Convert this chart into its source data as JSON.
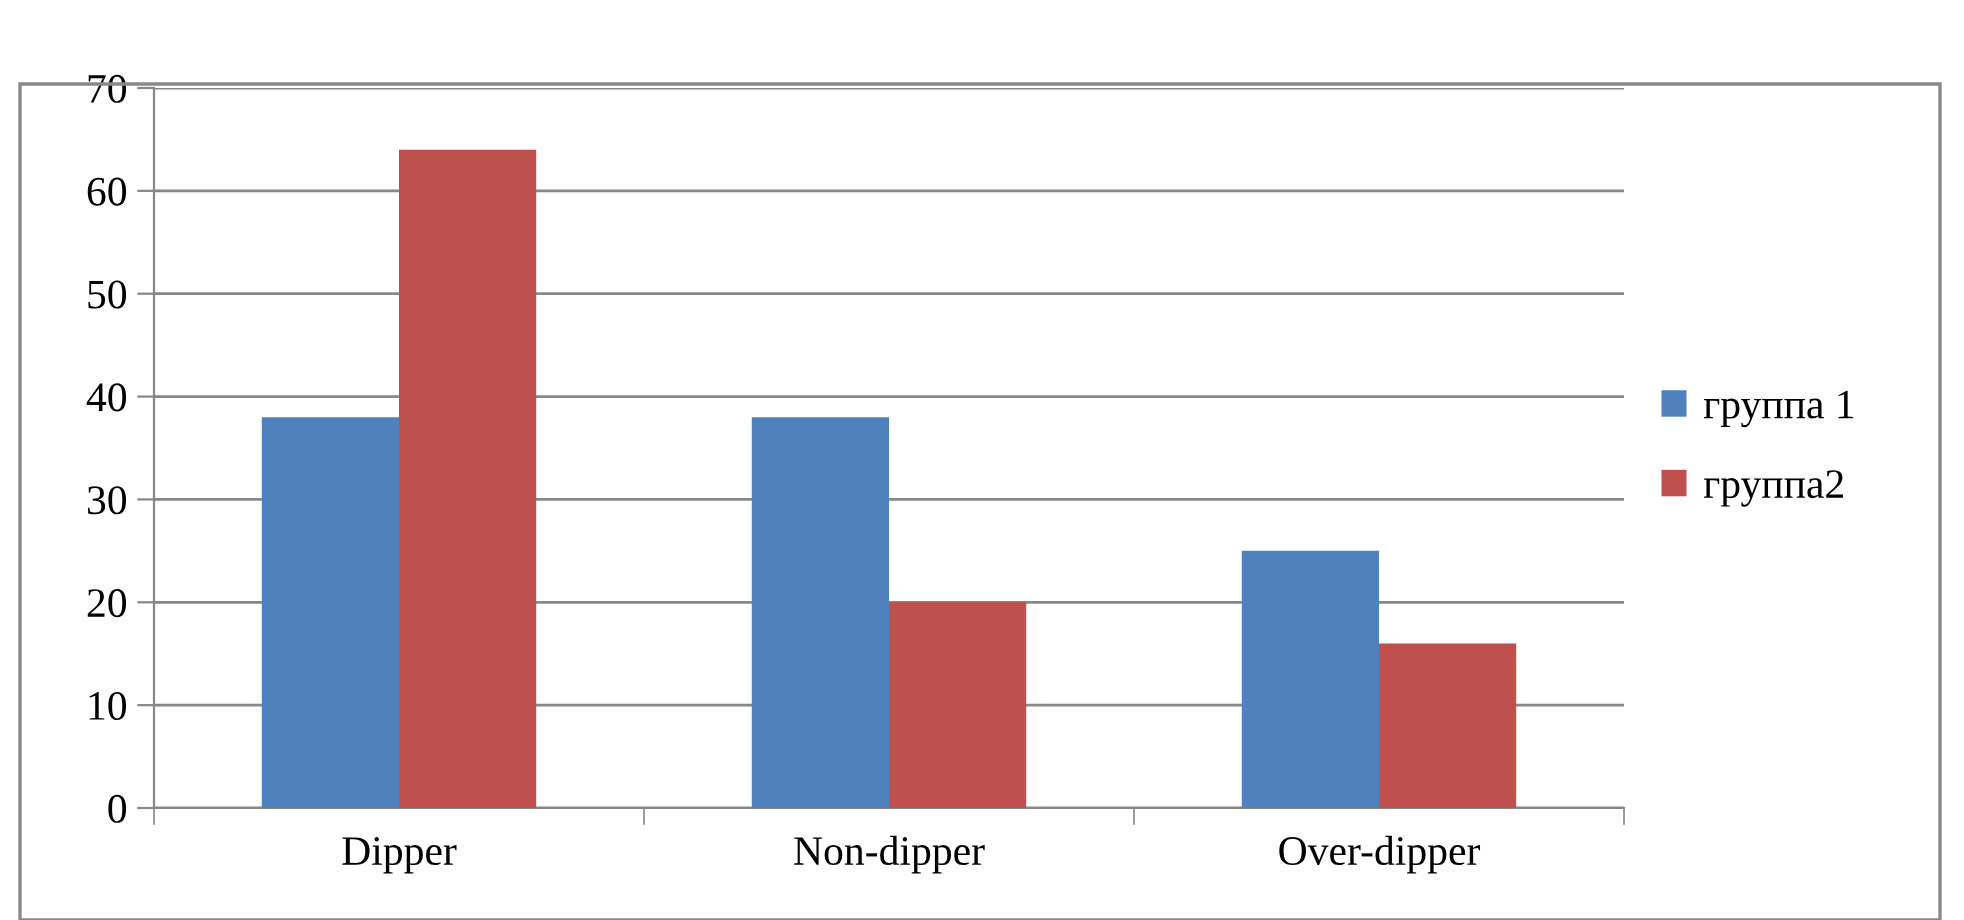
{
  "chart_data": {
    "type": "bar",
    "categories": [
      "Dipper",
      "Non-dipper",
      "Over-dipper"
    ],
    "series": [
      {
        "name": "группа 1",
        "color": "#4f81bd",
        "values": [
          38,
          38,
          25
        ]
      },
      {
        "name": "группа2",
        "color": "#c0504d",
        "values": [
          64,
          20,
          16
        ]
      }
    ],
    "ylim": [
      0,
      70
    ],
    "yticks": [
      0,
      10,
      20,
      30,
      40,
      50,
      60,
      70
    ],
    "grid": "y",
    "legend": "right"
  }
}
